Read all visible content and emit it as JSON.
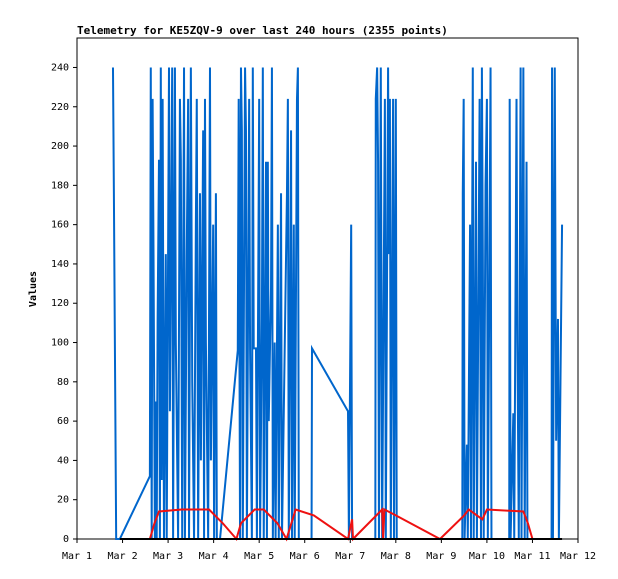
{
  "chart_data": {
    "type": "line",
    "title": "Telemetry for KE5ZQV-9 over last 240 hours (2355 points)",
    "y_label": "Values",
    "xlim": [
      1,
      12
    ],
    "xticks": [
      {
        "value": 1,
        "label": "Mar 1"
      },
      {
        "value": 2,
        "label": "Mar 2"
      },
      {
        "value": 3,
        "label": "Mar 3"
      },
      {
        "value": 4,
        "label": "Mar 4"
      },
      {
        "value": 5,
        "label": "Mar 5"
      },
      {
        "value": 6,
        "label": "Mar 6"
      },
      {
        "value": 7,
        "label": "Mar 7"
      },
      {
        "value": 8,
        "label": "Mar 8"
      },
      {
        "value": 9,
        "label": "Mar 9"
      },
      {
        "value": 10,
        "label": "Mar 10"
      },
      {
        "value": 11,
        "label": "Mar 11"
      },
      {
        "value": 12,
        "label": "Mar 12"
      }
    ],
    "ylim": [
      0,
      255
    ],
    "yticks": [
      0,
      20,
      40,
      60,
      80,
      100,
      120,
      140,
      160,
      180,
      200,
      220,
      240
    ],
    "grid": false,
    "series": [
      {
        "color": "#0066cc",
        "x": [
          1.79,
          1.81,
          1.86,
          1.94,
          2.6,
          2.62,
          2.64,
          2.66,
          2.68,
          2.71,
          2.73,
          2.75,
          2.77,
          2.8,
          2.82,
          2.84,
          2.86,
          2.88,
          2.91,
          2.95,
          2.97,
          3.02,
          3.04,
          3.09,
          3.11,
          3.15,
          3.17,
          3.22,
          3.26,
          3.28,
          3.31,
          3.35,
          3.37,
          3.41,
          3.44,
          3.46,
          3.5,
          3.53,
          3.57,
          3.61,
          3.63,
          3.66,
          3.7,
          3.72,
          3.77,
          3.79,
          3.81,
          3.83,
          3.88,
          3.92,
          3.94,
          3.99,
          4.01,
          4.05,
          4.07,
          4.14,
          4.53,
          4.55,
          4.58,
          4.6,
          4.62,
          4.64,
          4.69,
          4.71,
          4.73,
          4.78,
          4.8,
          4.84,
          4.86,
          4.88,
          4.93,
          4.95,
          5.0,
          5.02,
          5.06,
          5.08,
          5.1,
          5.15,
          5.17,
          5.19,
          5.21,
          5.26,
          5.28,
          5.3,
          5.34,
          5.36,
          5.41,
          5.43,
          5.48,
          5.5,
          5.61,
          5.63,
          5.65,
          5.7,
          5.72,
          5.76,
          5.78,
          5.83,
          5.85,
          5.87,
          6.15,
          6.16,
          6.95,
          6.97,
          7.02,
          7.04,
          7.55,
          7.56,
          7.59,
          7.61,
          7.63,
          7.67,
          7.7,
          7.76,
          7.78,
          7.83,
          7.85,
          7.87,
          7.89,
          7.94,
          7.96,
          8.0,
          8.02,
          9.46,
          9.47,
          9.49,
          9.51,
          9.56,
          9.58,
          9.63,
          9.65,
          9.69,
          9.71,
          9.76,
          9.78,
          9.84,
          9.87,
          9.89,
          9.91,
          9.93,
          9.97,
          10.0,
          10.02,
          10.08,
          10.1,
          10.49,
          10.5,
          10.52,
          10.58,
          10.6,
          10.65,
          10.67,
          10.7,
          10.74,
          10.76,
          10.8,
          10.83,
          10.87,
          10.89,
          11.42,
          11.43,
          11.45,
          11.49,
          11.52,
          11.56,
          11.58,
          11.65
        ],
        "values": [
          240,
          176,
          0,
          0,
          32,
          240,
          0,
          224,
          145,
          0,
          70,
          0,
          112,
          193,
          0,
          240,
          30,
          224,
          0,
          145,
          0,
          240,
          65,
          240,
          0,
          240,
          100,
          0,
          224,
          193,
          0,
          240,
          0,
          145,
          224,
          0,
          240,
          80,
          0,
          160,
          224,
          0,
          176,
          40,
          208,
          0,
          224,
          100,
          0,
          240,
          40,
          160,
          0,
          176,
          0,
          0,
          96,
          224,
          0,
          240,
          208,
          0,
          240,
          208,
          0,
          224,
          97,
          0,
          240,
          97,
          97,
          0,
          224,
          0,
          112,
          240,
          0,
          192,
          0,
          192,
          60,
          128,
          240,
          0,
          100,
          0,
          160,
          0,
          176,
          0,
          176,
          224,
          0,
          208,
          0,
          160,
          0,
          224,
          240,
          0,
          0,
          97,
          65,
          0,
          160,
          0,
          0,
          224,
          240,
          192,
          0,
          240,
          0,
          224,
          0,
          240,
          145,
          224,
          0,
          224,
          0,
          224,
          0,
          0,
          176,
          224,
          0,
          48,
          0,
          160,
          0,
          240,
          0,
          192,
          0,
          224,
          0,
          240,
          145,
          0,
          180,
          224,
          0,
          240,
          0,
          0,
          224,
          0,
          64,
          0,
          224,
          100,
          0,
          240,
          0,
          240,
          0,
          192,
          0,
          0,
          240,
          0,
          240,
          50,
          112,
          0,
          160
        ]
      },
      {
        "color": "#ee1111",
        "x": [
          2.6,
          2.7,
          2.8,
          3.3,
          3.9,
          4.2,
          4.5,
          4.6,
          4.9,
          5.1,
          5.4,
          5.6,
          5.8,
          6.2,
          6.95,
          7.04,
          7.06,
          7.7,
          7.72,
          7.75,
          8.0,
          8.97,
          9.5,
          9.6,
          9.9,
          10.0,
          10.8,
          10.9,
          11.0
        ],
        "values": [
          0,
          8,
          14,
          15,
          15,
          8,
          0,
          8,
          15,
          15,
          8,
          0,
          15,
          12,
          0,
          10,
          0,
          15,
          0,
          15,
          12,
          0,
          12,
          15,
          10,
          15,
          14,
          8,
          0
        ]
      },
      {
        "color": "#000000",
        "x": [
          1.94,
          11.65
        ],
        "values": [
          0,
          0
        ]
      }
    ]
  }
}
